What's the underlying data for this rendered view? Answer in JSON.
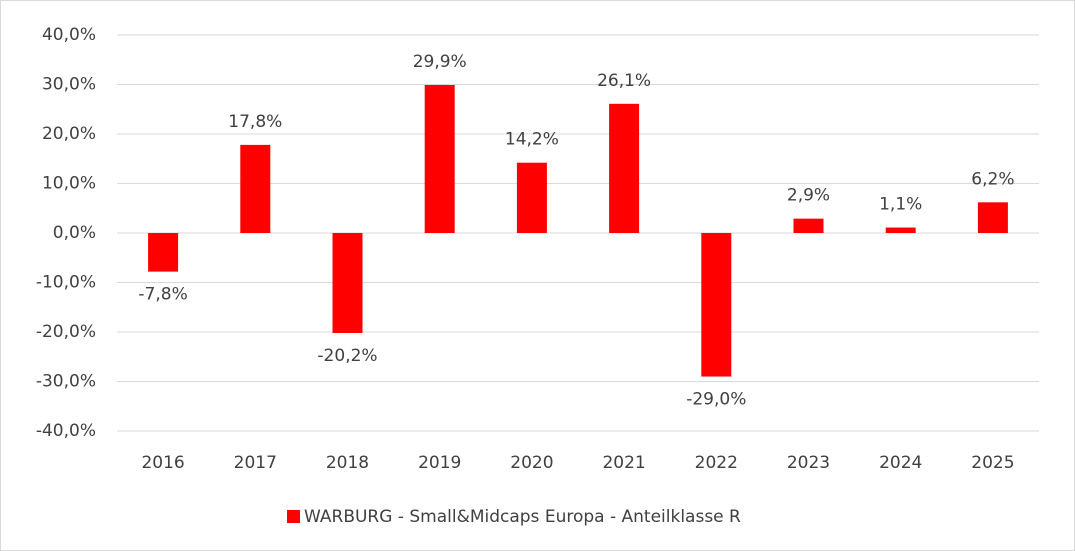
{
  "chart_data": {
    "type": "bar",
    "categories": [
      "2016",
      "2017",
      "2018",
      "2019",
      "2020",
      "2021",
      "2022",
      "2023",
      "2024",
      "2025"
    ],
    "series": [
      {
        "name": "WARBURG - Small&Midcaps Europa - Anteilklasse R",
        "color": "#ff0000",
        "values": [
          -7.8,
          17.8,
          -20.2,
          29.9,
          14.2,
          26.1,
          -29.0,
          2.9,
          1.1,
          6.2
        ],
        "value_labels": [
          "-7,8%",
          "17,8%",
          "-20,2%",
          "29,9%",
          "14,2%",
          "26,1%",
          "-29,0%",
          "2,9%",
          "1,1%",
          "6,2%"
        ]
      }
    ],
    "ylim": [
      -40,
      40
    ],
    "yticks": [
      {
        "value": -40,
        "label": "-40,0%"
      },
      {
        "value": -30,
        "label": "-30,0%"
      },
      {
        "value": -20,
        "label": "-20,0%"
      },
      {
        "value": -10,
        "label": "-10,0%"
      },
      {
        "value": 0,
        "label": "0,0%"
      },
      {
        "value": 10,
        "label": "10,0%"
      },
      {
        "value": 20,
        "label": "20,0%"
      },
      {
        "value": 30,
        "label": "30,0%"
      },
      {
        "value": 40,
        "label": "40,0%"
      }
    ],
    "grid": true,
    "legend": "bottom"
  }
}
